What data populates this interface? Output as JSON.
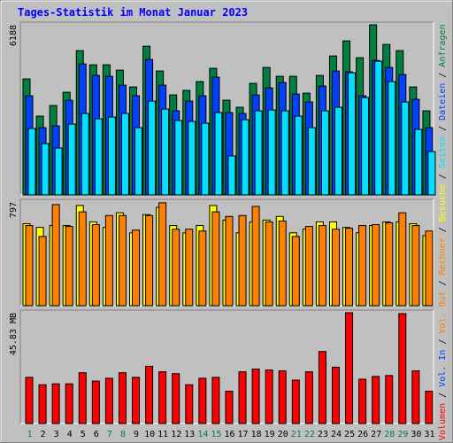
{
  "title": "Tages-Statistik im Monat Januar 2023",
  "categories": [
    "1",
    "2",
    "3",
    "4",
    "5",
    "6",
    "7",
    "8",
    "9",
    "10",
    "11",
    "12",
    "13",
    "14",
    "15",
    "16",
    "17",
    "18",
    "19",
    "20",
    "21",
    "22",
    "23",
    "24",
    "25",
    "26",
    "27",
    "28",
    "29",
    "30",
    "31"
  ],
  "category_colors": [
    "#008040",
    "#000000",
    "#000000",
    "#000000",
    "#000000",
    "#000000",
    "#008040",
    "#008040",
    "#000000",
    "#000000",
    "#000000",
    "#000000",
    "#000000",
    "#008040",
    "#008040",
    "#000000",
    "#000000",
    "#000000",
    "#000000",
    "#000000",
    "#008040",
    "#008040",
    "#000000",
    "#000000",
    "#000000",
    "#000000",
    "#000000",
    "#008040",
    "#008040",
    "#000000",
    "#000000"
  ],
  "separator": "/",
  "chart_data": [
    {
      "type": "bar",
      "ylim": [
        0,
        6188
      ],
      "yticks": [
        6188
      ],
      "series": [
        {
          "name": "Anfragen",
          "color": "#008040",
          "values": [
            4220,
            2866,
            3252,
            3735,
            5249,
            4733,
            4733,
            4540,
            3928,
            5410,
            4508,
            3639,
            3800,
            4122,
            4605,
            3445,
            3188,
            4057,
            4637,
            4315,
            4315,
            3703,
            4347,
            5055,
            5603,
            4991,
            6188,
            5474,
            5249,
            3928,
            3059
          ]
        },
        {
          "name": "Dateien",
          "color": "#0040ff",
          "values": [
            3606,
            2447,
            2512,
            3445,
            4766,
            4347,
            4315,
            3993,
            3606,
            4927,
            3993,
            3059,
            3413,
            3606,
            4283,
            2995,
            2962,
            3639,
            3896,
            4089,
            3671,
            3381,
            3961,
            4508,
            4476,
            3606,
            4894,
            4637,
            4379,
            3478,
            2447
          ]
        },
        {
          "name": "Seiten",
          "color": "#00e0ff",
          "values": [
            2415,
            1868,
            1707,
            2576,
            2962,
            2769,
            2834,
            2962,
            2447,
            3413,
            3123,
            2705,
            2673,
            2608,
            2995,
            1417,
            2737,
            3059,
            3091,
            3059,
            2866,
            2447,
            3059,
            3188,
            4444,
            3542,
            4862,
            4122,
            3381,
            2383,
            1578
          ]
        }
      ]
    },
    {
      "type": "bar",
      "ylim": [
        0,
        797
      ],
      "yticks": [
        797
      ],
      "series": [
        {
          "name": "Besuche",
          "color": "#ffff00",
          "values": [
            630,
            602,
            616,
            616,
            770,
            644,
            602,
            714,
            560,
            700,
            756,
            616,
            560,
            616,
            770,
            658,
            560,
            644,
            658,
            686,
            560,
            588,
            644,
            644,
            602,
            560,
            616,
            644,
            644,
            630,
            539
          ]
        },
        {
          "name": "Rechner",
          "color": "#ff8000",
          "values": [
            616,
            532,
            777,
            609,
            721,
            623,
            693,
            693,
            581,
            693,
            791,
            588,
            588,
            574,
            721,
            686,
            693,
            763,
            644,
            651,
            532,
            609,
            616,
            588,
            595,
            616,
            623,
            637,
            714,
            616,
            574
          ]
        }
      ]
    },
    {
      "type": "bar",
      "ylim": [
        0,
        45.83
      ],
      "yticks": [
        {
          "value": 45.83,
          "label": "45.83 MB"
        }
      ],
      "series": [
        {
          "name": "Vol. Out",
          "color": "#ff8000",
          "values": [
            null,
            null,
            null,
            null,
            null,
            null,
            null,
            null,
            null,
            null,
            null,
            null,
            null,
            null,
            null,
            null,
            null,
            null,
            null,
            null,
            null,
            null,
            null,
            null,
            null,
            null,
            null,
            null,
            null,
            null,
            null
          ]
        },
        {
          "name": "Vol. In",
          "color": "#0040ff",
          "values": [
            null,
            null,
            null,
            null,
            null,
            null,
            null,
            null,
            null,
            null,
            null,
            null,
            null,
            null,
            null,
            null,
            null,
            null,
            null,
            null,
            null,
            null,
            null,
            null,
            null,
            null,
            null,
            null,
            null,
            null,
            null
          ]
        },
        {
          "name": "Volumen",
          "color": "#ff0000",
          "values": [
            19.1,
            16.04,
            16.43,
            16.43,
            21.01,
            17.57,
            18.72,
            21.01,
            19.1,
            23.68,
            21.39,
            20.63,
            16.04,
            18.72,
            19.1,
            13.37,
            21.39,
            22.54,
            22.16,
            21.77,
            17.95,
            21.39,
            29.8,
            23.3,
            45.83,
            18.34,
            19.48,
            19.86,
            45.46,
            21.77,
            13.37
          ]
        }
      ]
    }
  ]
}
